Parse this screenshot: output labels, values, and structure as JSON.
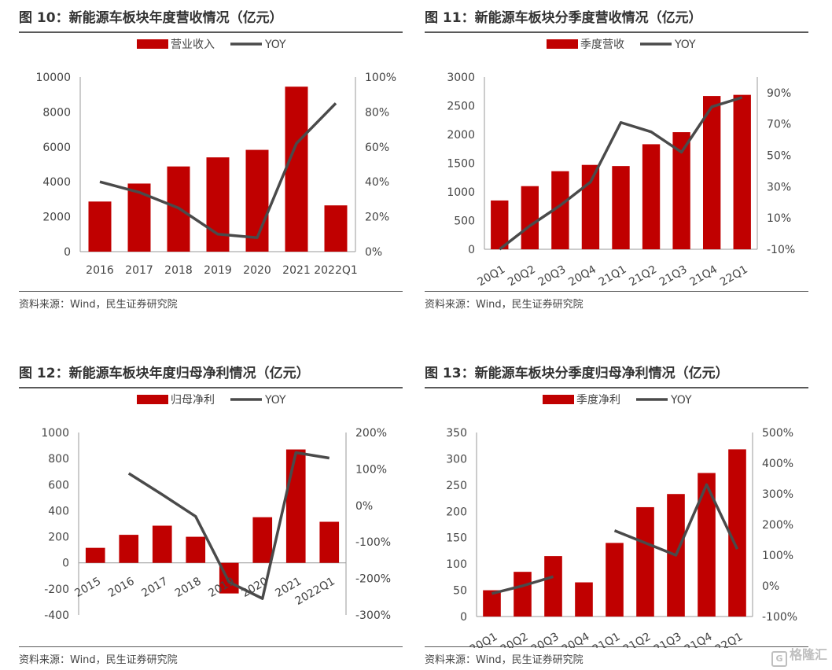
{
  "source_text": "资料来源：Wind，民生证券研究院",
  "watermark": {
    "text": "格隆汇",
    "icon": "G"
  },
  "colors": {
    "bar": "#c00000",
    "line": "#4a4a4a",
    "axis_text": "#444444"
  },
  "charts": [
    {
      "title_num": "图 10：",
      "title_text": "新能源车板块年度营收情况（亿元）",
      "chart_data": {
        "type": "bar+line",
        "categories": [
          "2016",
          "2017",
          "2018",
          "2019",
          "2020",
          "2021",
          "2022Q1"
        ],
        "series": [
          {
            "name": "营业收入",
            "kind": "bar",
            "axis": "left",
            "values": [
              2870,
              3900,
              4880,
              5400,
              5830,
              9450,
              2650
            ]
          },
          {
            "name": "YOY",
            "kind": "line",
            "axis": "right",
            "values": [
              40,
              34,
              25,
              10,
              8,
              62,
              85
            ]
          }
        ],
        "left_axis": {
          "ticks": [
            "0",
            "2000",
            "4000",
            "6000",
            "8000",
            "10000"
          ],
          "min": 0,
          "max": 10000
        },
        "right_axis": {
          "ticks": [
            "0%",
            "20%",
            "40%",
            "60%",
            "80%",
            "100%"
          ],
          "min": 0,
          "max": 100
        },
        "xlabel_rotate": false
      }
    },
    {
      "title_num": "图 11：",
      "title_text": "新能源车板块分季度营收情况（亿元）",
      "chart_data": {
        "type": "bar+line",
        "categories": [
          "20Q1",
          "20Q2",
          "20Q3",
          "20Q4",
          "21Q1",
          "21Q2",
          "21Q3",
          "21Q4",
          "22Q1"
        ],
        "series": [
          {
            "name": "季度营收",
            "kind": "bar",
            "axis": "left",
            "values": [
              850,
              1100,
              1360,
              1470,
              1450,
              1830,
              2040,
              2670,
              2690
            ]
          },
          {
            "name": "YOY",
            "kind": "line",
            "axis": "right",
            "values": [
              -10,
              5,
              18,
              33,
              71,
              65,
              52,
              81,
              87
            ]
          }
        ],
        "left_axis": {
          "ticks": [
            "0",
            "500",
            "1000",
            "1500",
            "2000",
            "2500",
            "3000"
          ],
          "min": 0,
          "max": 3000
        },
        "right_axis": {
          "ticks": [
            "-10%",
            "10%",
            "30%",
            "50%",
            "70%",
            "90%"
          ],
          "min": -10,
          "max": 100
        },
        "xlabel_rotate": true
      }
    },
    {
      "title_num": "图 12：",
      "title_text": "新能源车板块年度归母净利情况（亿元）",
      "chart_data": {
        "type": "bar+line",
        "categories": [
          "2015",
          "2016",
          "2017",
          "2018",
          "2019",
          "2020",
          "2021",
          "2022Q1"
        ],
        "series": [
          {
            "name": "归母净利",
            "kind": "bar",
            "axis": "left",
            "values": [
              115,
              215,
              285,
              200,
              -235,
              350,
              870,
              315
            ]
          },
          {
            "name": "YOY",
            "kind": "line",
            "axis": "right",
            "values": [
              null,
              88,
              30,
              -30,
              -210,
              -255,
              145,
              130
            ]
          }
        ],
        "left_axis": {
          "ticks": [
            "-400",
            "-200",
            "0",
            "200",
            "400",
            "600",
            "800",
            "1000"
          ],
          "min": -400,
          "max": 1000
        },
        "right_axis": {
          "ticks": [
            "-300%",
            "-200%",
            "-100%",
            "0%",
            "100%",
            "200%"
          ],
          "min": -300,
          "max": 200
        },
        "xlabel_rotate": true,
        "xlabel_at_zero": true
      }
    },
    {
      "title_num": "图 13：",
      "title_text": "新能源车板块分季度归母净利情况（亿元）",
      "chart_data": {
        "type": "bar+line",
        "categories": [
          "20Q1",
          "20Q2",
          "20Q3",
          "20Q4",
          "21Q1",
          "21Q2",
          "21Q3",
          "21Q4",
          "22Q1"
        ],
        "series": [
          {
            "name": "季度净利",
            "kind": "bar",
            "axis": "left",
            "values": [
              50,
              85,
              115,
              65,
              140,
              208,
              233,
              273,
              318
            ]
          },
          {
            "name": "YOY",
            "kind": "line",
            "axis": "right",
            "values": [
              -25,
              0,
              30,
              null,
              180,
              140,
              100,
              330,
              120
            ]
          }
        ],
        "left_axis": {
          "ticks": [
            "0",
            "50",
            "100",
            "150",
            "200",
            "250",
            "300",
            "350"
          ],
          "min": 0,
          "max": 350
        },
        "right_axis": {
          "ticks": [
            "-100%",
            "0%",
            "100%",
            "200%",
            "300%",
            "400%",
            "500%"
          ],
          "min": -100,
          "max": 500
        },
        "xlabel_rotate": true
      }
    }
  ]
}
